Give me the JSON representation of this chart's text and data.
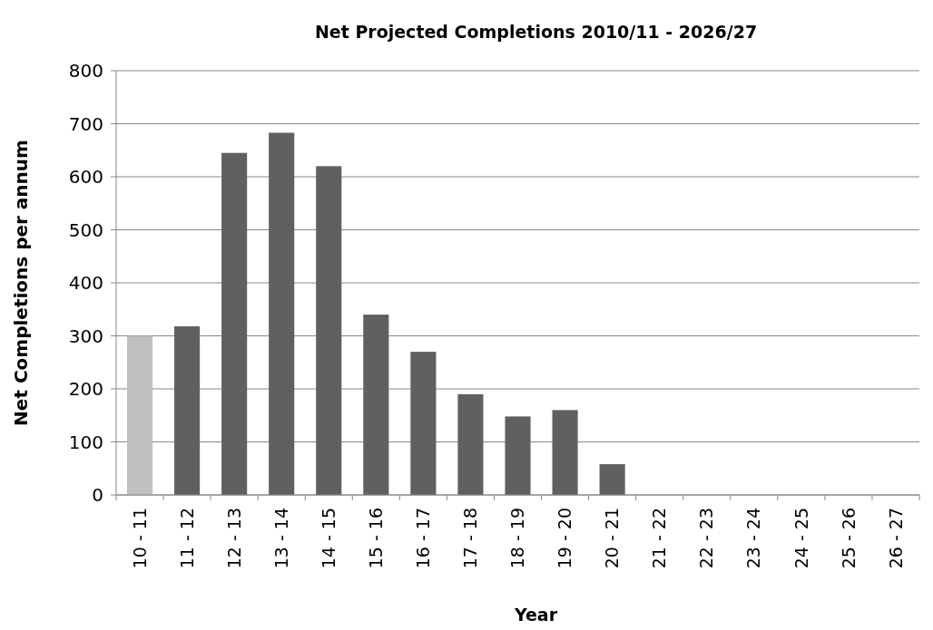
{
  "chart_data": {
    "type": "bar",
    "title": "Net Projected Completions 2010/11 - 2026/27",
    "xlabel": "Year",
    "ylabel": "Net Completions per annum",
    "categories": [
      "10 - 11",
      "11 - 12",
      "12 - 13",
      "13 - 14",
      "14 - 15",
      "15 - 16",
      "16 - 17",
      "17 - 18",
      "18 - 19",
      "19 - 20",
      "20 - 21",
      "21 - 22",
      "22 - 23",
      "23 - 24",
      "24 - 25",
      "25 - 26",
      "26 - 27"
    ],
    "values": [
      300,
      318,
      645,
      683,
      620,
      340,
      270,
      190,
      148,
      160,
      58,
      0,
      0,
      0,
      0,
      0,
      0
    ],
    "colors": [
      "#c0c0c0",
      "#606060",
      "#606060",
      "#606060",
      "#606060",
      "#606060",
      "#606060",
      "#606060",
      "#606060",
      "#606060",
      "#606060",
      "#606060",
      "#606060",
      "#606060",
      "#606060",
      "#606060",
      "#606060"
    ],
    "ylim": [
      0,
      800
    ],
    "yticks": [
      0,
      100,
      200,
      300,
      400,
      500,
      600,
      700,
      800
    ],
    "grid": "y"
  }
}
